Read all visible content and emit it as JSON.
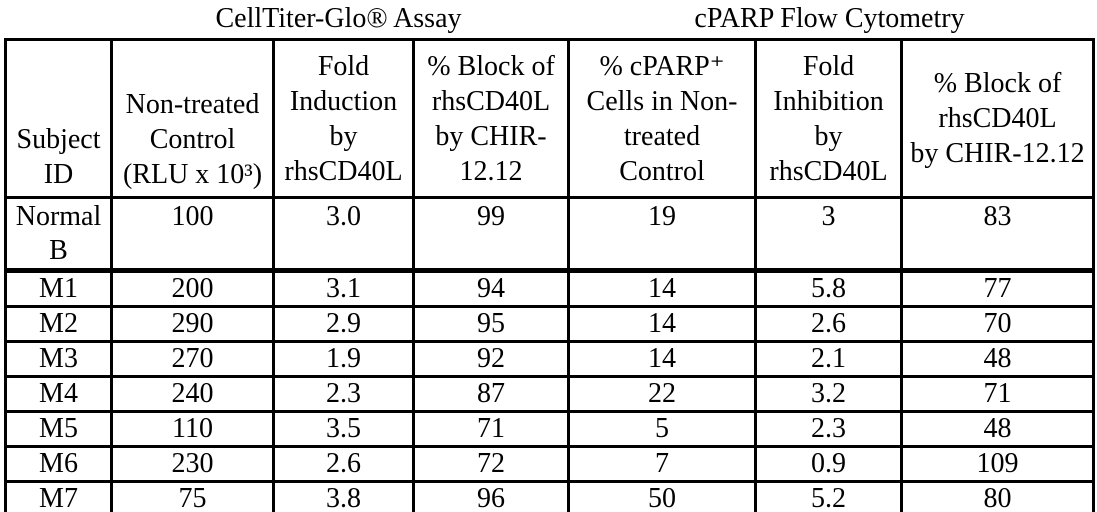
{
  "titles": {
    "left": "CellTiter-Glo® Assay",
    "right": "cPARP Flow Cytometry"
  },
  "table": {
    "columns": [
      {
        "id": "subject-id",
        "label": "Subject\nID",
        "align": "bottom"
      },
      {
        "id": "nontreated-control-rlu",
        "label": "Non-treated\nControl\n(RLU x 10³)",
        "align": "bottom"
      },
      {
        "id": "fold-induction-rhscd40l",
        "label": "Fold\nInduction\nby\nrhsCD40L",
        "align": "middle"
      },
      {
        "id": "pct-block-rhscd40l-chir-assay",
        "label": "% Block of\nrhsCD40L\nby CHIR-\n12.12",
        "align": "middle"
      },
      {
        "id": "pct-cparp-cells-nontreated",
        "label": "% cPARP⁺\nCells in Non-\ntreated\nControl",
        "align": "middle"
      },
      {
        "id": "fold-inhibition-rhscd40l",
        "label": "Fold\nInhibition\nby\nrhsCD40L",
        "align": "middle"
      },
      {
        "id": "pct-block-rhscd40l-chir-cytometry",
        "label": "% Block of\nrhsCD40L\nby CHIR-12.12",
        "align": "middle"
      }
    ],
    "rows": [
      {
        "id": "normal-b",
        "tall": true,
        "cells": [
          "Normal\nB",
          "100",
          "3.0",
          "99",
          "19",
          "3",
          "83"
        ]
      },
      {
        "id": "m1",
        "tall": false,
        "cells": [
          "M1",
          "200",
          "3.1",
          "94",
          "14",
          "5.8",
          "77"
        ]
      },
      {
        "id": "m2",
        "tall": false,
        "cells": [
          "M2",
          "290",
          "2.9",
          "95",
          "14",
          "2.6",
          "70"
        ]
      },
      {
        "id": "m3",
        "tall": false,
        "cells": [
          "M3",
          "270",
          "1.9",
          "92",
          "14",
          "2.1",
          "48"
        ]
      },
      {
        "id": "m4",
        "tall": false,
        "cells": [
          "M4",
          "240",
          "2.3",
          "87",
          "22",
          "3.2",
          "71"
        ]
      },
      {
        "id": "m5",
        "tall": false,
        "cells": [
          "M5",
          "110",
          "3.5",
          "71",
          "5",
          "2.3",
          "48"
        ]
      },
      {
        "id": "m6",
        "tall": false,
        "cells": [
          "M6",
          "230",
          "2.6",
          "72",
          "7",
          "0.9",
          "109"
        ]
      },
      {
        "id": "m7",
        "tall": false,
        "cells": [
          "M7",
          "75",
          "3.8",
          "96",
          "50",
          "5.2",
          "80"
        ]
      }
    ]
  },
  "colors": {
    "text": "#000000",
    "background": "#ffffff",
    "border": "#000000"
  }
}
